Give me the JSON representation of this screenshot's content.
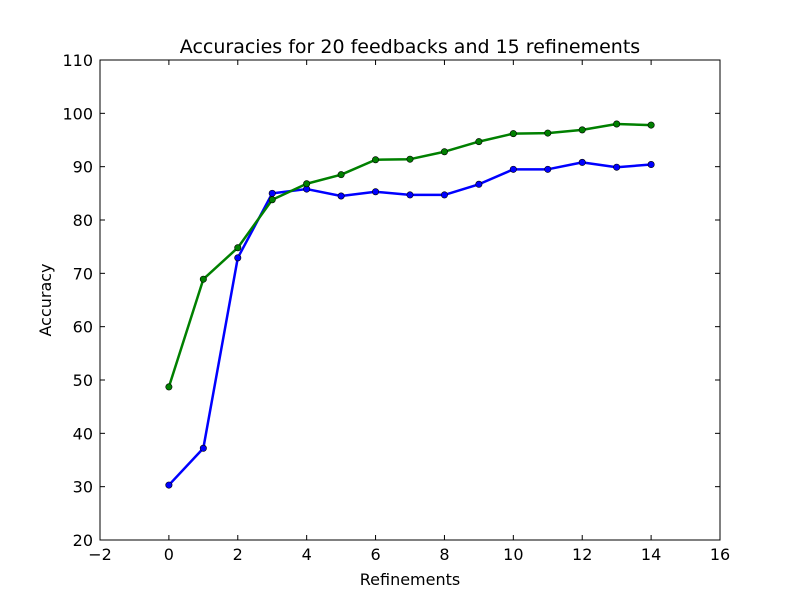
{
  "chart_data": {
    "type": "line",
    "title": "Accuracies for 20 feedbacks and 15 refinements",
    "xlabel": "Refinements",
    "ylabel": "Accuracy",
    "xlim": [
      -2,
      16
    ],
    "ylim": [
      20,
      110
    ],
    "xticks": [
      -2,
      0,
      2,
      4,
      6,
      8,
      10,
      12,
      14,
      16
    ],
    "xtick_labels": [
      "−2",
      "0",
      "2",
      "4",
      "6",
      "8",
      "10",
      "12",
      "14",
      "16"
    ],
    "yticks": [
      20,
      30,
      40,
      50,
      60,
      70,
      80,
      90,
      100,
      110
    ],
    "ytick_labels": [
      "20",
      "30",
      "40",
      "50",
      "60",
      "70",
      "80",
      "90",
      "100",
      "110"
    ],
    "grid": false,
    "x": [
      0,
      1,
      2,
      3,
      4,
      5,
      6,
      7,
      8,
      9,
      10,
      11,
      12,
      13,
      14
    ],
    "series": [
      {
        "color": "#0000ff",
        "values": [
          30.3,
          37.2,
          72.9,
          85.0,
          85.8,
          84.5,
          85.3,
          84.7,
          84.7,
          86.7,
          89.5,
          89.5,
          90.8,
          89.9,
          90.4
        ]
      },
      {
        "color": "#008000",
        "values": [
          48.7,
          68.9,
          74.8,
          83.8,
          86.8,
          88.5,
          91.3,
          91.4,
          92.8,
          94.7,
          96.2,
          96.3,
          96.9,
          98.0,
          97.8
        ]
      }
    ]
  }
}
